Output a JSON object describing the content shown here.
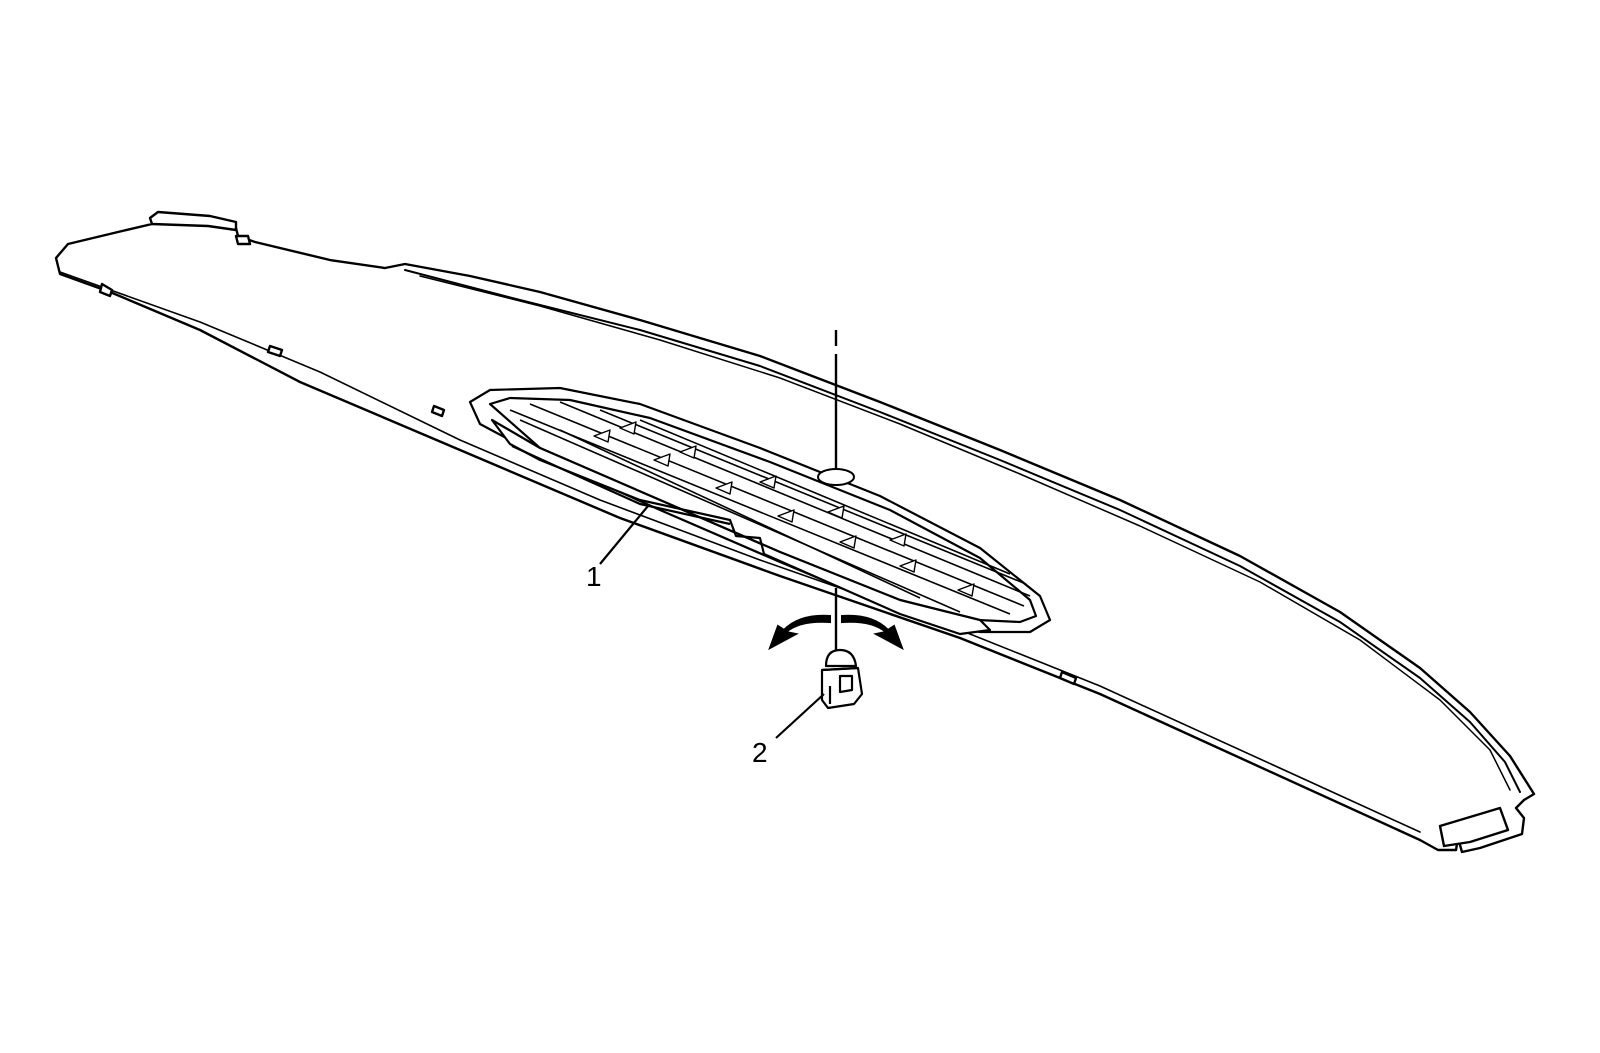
{
  "callouts": [
    {
      "id": "1",
      "label": "1"
    },
    {
      "id": "2",
      "label": "2"
    }
  ],
  "colors": {
    "line": "#000000",
    "background": "#ffffff"
  },
  "parts": {
    "panel_icon": "instrument-panel-upper-trim",
    "vent_icon": "defroster-vent-grille",
    "bulb_icon": "sensor-bulb",
    "rotate_icon": "rotate-arrows"
  }
}
